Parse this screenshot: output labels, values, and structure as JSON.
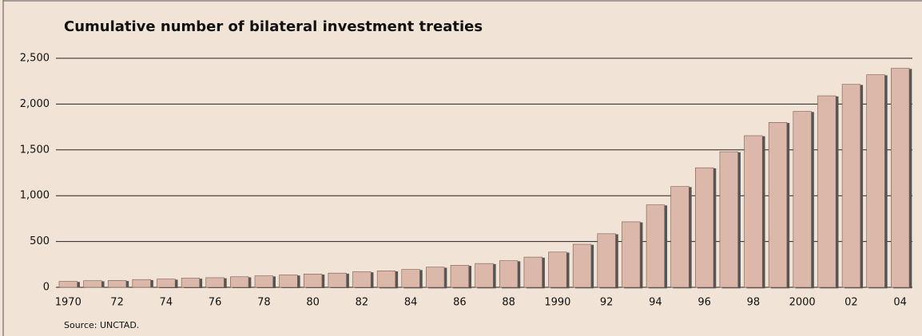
{
  "chart_data": {
    "type": "bar",
    "title": "Cumulative number of bilateral investment treaties",
    "source": "Source: UNCTAD.",
    "categories": [
      "1970",
      null,
      "72",
      null,
      "74",
      null,
      "76",
      null,
      "78",
      null,
      "80",
      null,
      "82",
      null,
      "84",
      null,
      "86",
      null,
      "88",
      null,
      "1990",
      null,
      "92",
      null,
      "94",
      null,
      "96",
      null,
      "98",
      null,
      "2000",
      null,
      "02",
      null,
      "04"
    ],
    "values": [
      65,
      72,
      75,
      85,
      90,
      100,
      105,
      115,
      125,
      135,
      145,
      155,
      170,
      180,
      195,
      220,
      240,
      260,
      290,
      330,
      385,
      470,
      585,
      715,
      900,
      1100,
      1305,
      1480,
      1655,
      1800,
      1920,
      2090,
      2215,
      2320,
      2390
    ],
    "color": "#dbb8a9",
    "ylim": [
      0,
      2500
    ],
    "yticks": [
      0,
      500,
      {
        "value": 1000,
        "label": "1,000"
      },
      {
        "value": 1500,
        "label": "1,500"
      },
      {
        "value": 2000,
        "label": "2,000"
      },
      {
        "value": 2500,
        "label": "2,500"
      }
    ],
    "grid": true
  }
}
